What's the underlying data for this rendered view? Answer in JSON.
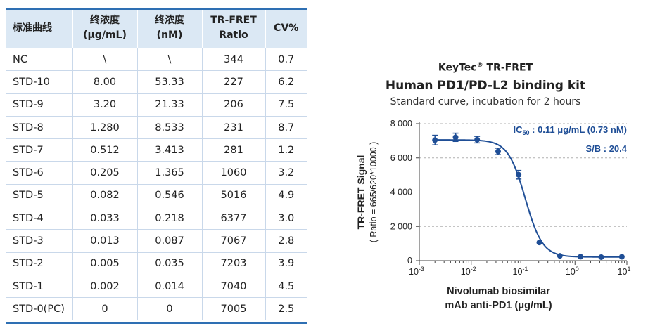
{
  "table": {
    "headers": [
      [
        "标准曲线"
      ],
      [
        "终浓度",
        "(μg/mL)"
      ],
      [
        "终浓度",
        "(nM)"
      ],
      [
        "TR-FRET",
        "Ratio"
      ],
      [
        "CV%"
      ]
    ],
    "rows": [
      [
        "NC",
        "\\",
        "\\",
        "344",
        "0.7"
      ],
      [
        "STD-10",
        "8.00",
        "53.33",
        "227",
        "6.2"
      ],
      [
        "STD-9",
        "3.20",
        "21.33",
        "206",
        "7.5"
      ],
      [
        "STD-8",
        "1.280",
        "8.533",
        "231",
        "8.7"
      ],
      [
        "STD-7",
        "0.512",
        "3.413",
        "281",
        "1.2"
      ],
      [
        "STD-6",
        "0.205",
        "1.365",
        "1060",
        "3.2"
      ],
      [
        "STD-5",
        "0.082",
        "0.546",
        "5016",
        "4.9"
      ],
      [
        "STD-4",
        "0.033",
        "0.218",
        "6377",
        "3.0"
      ],
      [
        "STD-3",
        "0.013",
        "0.087",
        "7067",
        "2.8"
      ],
      [
        "STD-2",
        "0.005",
        "0.035",
        "7203",
        "3.9"
      ],
      [
        "STD-1",
        "0.002",
        "0.014",
        "7040",
        "4.5"
      ],
      [
        "STD-0(PC)",
        "0",
        "0",
        "7005",
        "2.5"
      ]
    ]
  },
  "chart_data": {
    "type": "scatter",
    "title_line1": "KeyTec",
    "title_reg": "®",
    "title_line1b": " TR-FRET",
    "title": "Human PD1/PD-L2 binding kit",
    "subtitle": "Standard curve,  incubation for 2 hours",
    "ylabel": "TR-FRET Signal",
    "ylabel2": "( Ratio = 665/620*10000 )",
    "xlabel": "Nivolumab biosimilar",
    "xlabel2": "mAb anti-PD1  (μg/mL)",
    "x_scale": "log",
    "xlim": [
      0.001,
      10
    ],
    "ylim": [
      0,
      8000
    ],
    "x_ticks": [
      {
        "base": "10",
        "exp": "-3",
        "value": 0.001
      },
      {
        "base": "10",
        "exp": "-2",
        "value": 0.01
      },
      {
        "base": "10",
        "exp": "-1",
        "value": 0.1
      },
      {
        "base": "10",
        "exp": "0",
        "value": 1
      },
      {
        "base": "10",
        "exp": "1",
        "value": 10
      }
    ],
    "y_ticks": [
      {
        "label": "0",
        "value": 0
      },
      {
        "label": "2 000",
        "value": 2000
      },
      {
        "label": "4 000",
        "value": 4000
      },
      {
        "label": "6 000",
        "value": 6000
      },
      {
        "label": "8 000",
        "value": 8000
      }
    ],
    "grid": "horizontal-dashed",
    "annotation_ic50_main": "IC",
    "annotation_ic50_sub": "50",
    "annotation_ic50_rest": " : 0.11 μg/mL (0.73 nM)",
    "annotation_sb": "S/B : 20.4",
    "points": [
      {
        "x": 0.002,
        "y": 7040,
        "err": 280
      },
      {
        "x": 0.005,
        "y": 7203,
        "err": 240
      },
      {
        "x": 0.013,
        "y": 7067,
        "err": 190
      },
      {
        "x": 0.033,
        "y": 6377,
        "err": 190
      },
      {
        "x": 0.082,
        "y": 5016,
        "err": 250
      },
      {
        "x": 0.205,
        "y": 1060,
        "err": 40
      },
      {
        "x": 0.512,
        "y": 281,
        "err": 10
      },
      {
        "x": 1.28,
        "y": 231,
        "err": 20
      },
      {
        "x": 3.2,
        "y": 206,
        "err": 15
      },
      {
        "x": 8.0,
        "y": 227,
        "err": 15
      }
    ],
    "fit": {
      "top": 7050,
      "bottom": 215,
      "ic50": 0.11,
      "hill": 2.6
    },
    "color": "#1f4e96"
  }
}
